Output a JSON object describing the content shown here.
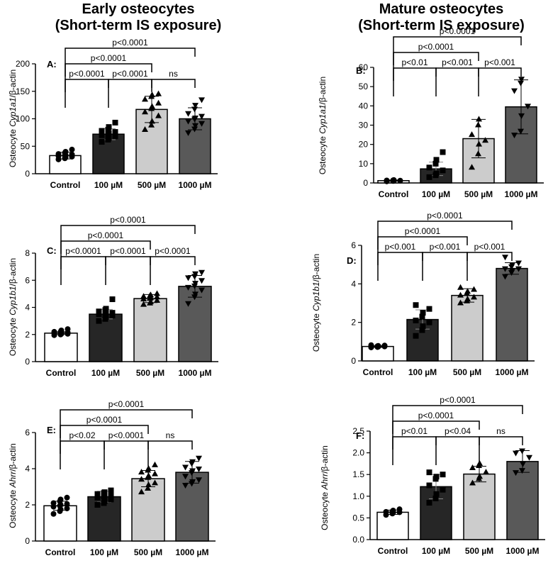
{
  "titles": {
    "left": [
      "Early osteocytes",
      "(Short-term IS exposure)"
    ],
    "right": [
      "Mature osteocytes",
      "(Short-term IS exposure)"
    ]
  },
  "colors": {
    "control": "#ffffff",
    "d100": "#262626",
    "d500": "#cccccc",
    "d1000": "#595959"
  },
  "chart_data": [
    {
      "id": "A",
      "type": "bar",
      "panel_label": "A:",
      "ylabel": {
        "pre": "Osteocyte ",
        "gene": "Cyp1a1",
        "post": "/β-actin"
      },
      "categories": [
        "Control",
        "100 µM",
        "500 µM",
        "1000 µM"
      ],
      "values": [
        33,
        72,
        117,
        100
      ],
      "errors": [
        6,
        10,
        24,
        20
      ],
      "ylim": [
        0,
        200
      ],
      "yticks": [
        0,
        50,
        100,
        150,
        200
      ],
      "points": [
        [
          26,
          28,
          30,
          31,
          32,
          33,
          34,
          35,
          36,
          38,
          40,
          44
        ],
        [
          58,
          62,
          65,
          68,
          70,
          72,
          74,
          76,
          78,
          80,
          85,
          93
        ],
        [
          80,
          88,
          95,
          105,
          112,
          118,
          122,
          128,
          135,
          140,
          143,
          145
        ],
        [
          75,
          82,
          88,
          92,
          96,
          100,
          102,
          105,
          110,
          118,
          125,
          135
        ]
      ],
      "comparisons": [
        {
          "from": 0,
          "to": 3,
          "label": "p<0.0001"
        },
        {
          "from": 0,
          "to": 2,
          "label": "p<0.0001"
        },
        {
          "from": 1,
          "to": 2,
          "label": "p<0.0001"
        },
        {
          "from": 2,
          "to": 3,
          "label": "ns"
        },
        {
          "from": 0,
          "to": 1,
          "label": "p<0.0001"
        }
      ]
    },
    {
      "id": "B",
      "type": "bar",
      "panel_label": "B:",
      "ylabel": {
        "pre": "Osteocyte ",
        "gene": "Cyp1a1",
        "post": "/β-actin"
      },
      "categories": [
        "Control",
        "100 µM",
        "500 µM",
        "1000 µM"
      ],
      "values": [
        1.2,
        7.3,
        23,
        39.5
      ],
      "errors": [
        0.3,
        3.5,
        10,
        14
      ],
      "ylim": [
        0,
        60
      ],
      "yticks": [
        0,
        10,
        20,
        30,
        40,
        50,
        60
      ],
      "points": [
        [
          0.8,
          1.0,
          1.1,
          1.2,
          1.3,
          1.4,
          1.5
        ],
        [
          3,
          4,
          5,
          6.5,
          8,
          10,
          12,
          16
        ],
        [
          8,
          15,
          20,
          22,
          25,
          30,
          33
        ],
        [
          25,
          27,
          35,
          40,
          48,
          52,
          54
        ]
      ],
      "comparisons": [
        {
          "from": 0,
          "to": 3,
          "label": "p<0.0001"
        },
        {
          "from": 2,
          "to": 3,
          "label": "p<0.001"
        },
        {
          "from": 0,
          "to": 2,
          "label": "p<0.0001"
        },
        {
          "from": 1,
          "to": 2,
          "label": "p<0.001"
        },
        {
          "from": 0,
          "to": 1,
          "label": "p<0.01"
        }
      ]
    },
    {
      "id": "C",
      "type": "bar",
      "panel_label": "C:",
      "ylabel": {
        "pre": "Osteocyte ",
        "gene": "Cyp1b1",
        "post": "/β-actin"
      },
      "categories": [
        "Control",
        "100 µM",
        "500 µM",
        "1000 µM"
      ],
      "values": [
        2.1,
        3.5,
        4.65,
        5.55
      ],
      "errors": [
        0.1,
        0.35,
        0.3,
        0.8
      ],
      "ylim": [
        0,
        8
      ],
      "yticks": [
        0,
        2,
        4,
        6,
        8
      ],
      "points": [
        [
          1.95,
          2.0,
          2.05,
          2.05,
          2.1,
          2.1,
          2.15,
          2.15,
          2.2,
          2.2,
          2.3,
          2.4
        ],
        [
          3.0,
          3.15,
          3.3,
          3.4,
          3.5,
          3.5,
          3.55,
          3.6,
          3.7,
          3.8,
          3.9,
          4.6
        ],
        [
          4.2,
          4.3,
          4.4,
          4.5,
          4.6,
          4.65,
          4.7,
          4.75,
          4.8,
          4.85,
          4.9,
          5.0
        ],
        [
          4.3,
          4.8,
          5.0,
          5.3,
          5.5,
          5.6,
          5.8,
          6.0,
          6.2,
          6.3,
          6.5,
          6.6
        ]
      ],
      "comparisons": [
        {
          "from": 0,
          "to": 3,
          "label": "p<0.0001"
        },
        {
          "from": 0,
          "to": 2,
          "label": "p<0.0001"
        },
        {
          "from": 2,
          "to": 3,
          "label": "p<0.0001"
        },
        {
          "from": 1,
          "to": 2,
          "label": "p<0.0001"
        },
        {
          "from": 0,
          "to": 1,
          "label": "p<0.0001"
        }
      ]
    },
    {
      "id": "D",
      "type": "bar",
      "panel_label": "D:",
      "ylabel": {
        "pre": "Osteocyte ",
        "gene": "Cyp1b1",
        "post": "/β-actin"
      },
      "categories": [
        "Control",
        "100 µM",
        "500 µM",
        "1000 µM"
      ],
      "values": [
        0.75,
        2.15,
        3.4,
        4.8
      ],
      "errors": [
        0.05,
        0.5,
        0.35,
        0.3
      ],
      "ylim": [
        0,
        6
      ],
      "yticks": [
        0,
        2,
        4,
        6
      ],
      "points": [
        [
          0.7,
          0.72,
          0.74,
          0.75,
          0.76,
          0.77,
          0.78,
          0.8,
          0.82
        ],
        [
          1.3,
          1.6,
          1.8,
          2.0,
          2.1,
          2.3,
          2.5,
          2.7,
          2.9
        ],
        [
          3.0,
          3.1,
          3.2,
          3.3,
          3.4,
          3.5,
          3.6,
          3.7,
          3.8
        ],
        [
          4.4,
          4.6,
          4.7,
          4.8,
          4.8,
          4.9,
          5.0,
          5.1,
          5.4
        ]
      ],
      "comparisons": [
        {
          "from": 0,
          "to": 3,
          "label": "p<0.0001"
        },
        {
          "from": 0,
          "to": 2,
          "label": "p<0.0001"
        },
        {
          "from": 2,
          "to": 3,
          "label": "p<0.001"
        },
        {
          "from": 1,
          "to": 2,
          "label": "p<0.001"
        },
        {
          "from": 0,
          "to": 1,
          "label": "p<0.001"
        }
      ]
    },
    {
      "id": "E",
      "type": "bar",
      "panel_label": "E:",
      "ylabel": {
        "pre": "Osteocyte ",
        "gene": "Ahrr",
        "post": "/β-actin"
      },
      "categories": [
        "Control",
        "100 µM",
        "500 µM",
        "1000 µM"
      ],
      "values": [
        1.95,
        2.45,
        3.45,
        3.8
      ],
      "errors": [
        0.25,
        0.3,
        0.45,
        0.6
      ],
      "ylim": [
        0,
        6
      ],
      "yticks": [
        0,
        2,
        4,
        6
      ],
      "points": [
        [
          1.5,
          1.65,
          1.75,
          1.8,
          1.9,
          1.95,
          2.0,
          2.05,
          2.1,
          2.2,
          2.3,
          2.4
        ],
        [
          2.0,
          2.1,
          2.2,
          2.3,
          2.4,
          2.45,
          2.5,
          2.55,
          2.6,
          2.65,
          2.7,
          2.8
        ],
        [
          2.7,
          2.9,
          3.1,
          3.2,
          3.4,
          3.5,
          3.6,
          3.7,
          3.8,
          3.9,
          4.0,
          4.2
        ],
        [
          3.1,
          3.2,
          3.3,
          3.4,
          3.6,
          3.8,
          3.9,
          4.0,
          4.1,
          4.3,
          4.4,
          4.6
        ]
      ],
      "comparisons": [
        {
          "from": 0,
          "to": 3,
          "label": "p<0.0001"
        },
        {
          "from": 0,
          "to": 2,
          "label": "p<0.0001"
        },
        {
          "from": 2,
          "to": 3,
          "label": "ns"
        },
        {
          "from": 1,
          "to": 2,
          "label": "p<0.0001"
        },
        {
          "from": 0,
          "to": 1,
          "label": "p<0.02"
        }
      ]
    },
    {
      "id": "F",
      "type": "bar",
      "panel_label": "F:",
      "ylabel": {
        "pre": "Osteocyte ",
        "gene": "Ahrr",
        "post": "/β-actin"
      },
      "categories": [
        "Control",
        "100 µM",
        "500 µM",
        "1000 µM"
      ],
      "values": [
        0.63,
        1.22,
        1.51,
        1.8
      ],
      "errors": [
        0.05,
        0.28,
        0.18,
        0.25
      ],
      "ylim": [
        0,
        2.5
      ],
      "yticks": [
        0.0,
        0.5,
        1.0,
        1.5,
        2.0,
        2.5
      ],
      "points": [
        [
          0.57,
          0.6,
          0.62,
          0.63,
          0.64,
          0.65,
          0.67,
          0.7
        ],
        [
          0.85,
          0.95,
          1.05,
          1.15,
          1.25,
          1.4,
          1.45,
          1.5,
          1.55
        ],
        [
          1.3,
          1.4,
          1.45,
          1.55,
          1.65,
          1.7,
          1.75
        ],
        [
          1.55,
          1.6,
          1.75,
          1.9,
          2.0,
          2.05
        ]
      ],
      "comparisons": [
        {
          "from": 0,
          "to": 3,
          "label": "p<0.0001"
        },
        {
          "from": 0,
          "to": 2,
          "label": "p<0.0001"
        },
        {
          "from": 2,
          "to": 3,
          "label": "ns"
        },
        {
          "from": 1,
          "to": 2,
          "label": "p<0.04"
        },
        {
          "from": 0,
          "to": 1,
          "label": "p<0.01"
        }
      ]
    }
  ]
}
